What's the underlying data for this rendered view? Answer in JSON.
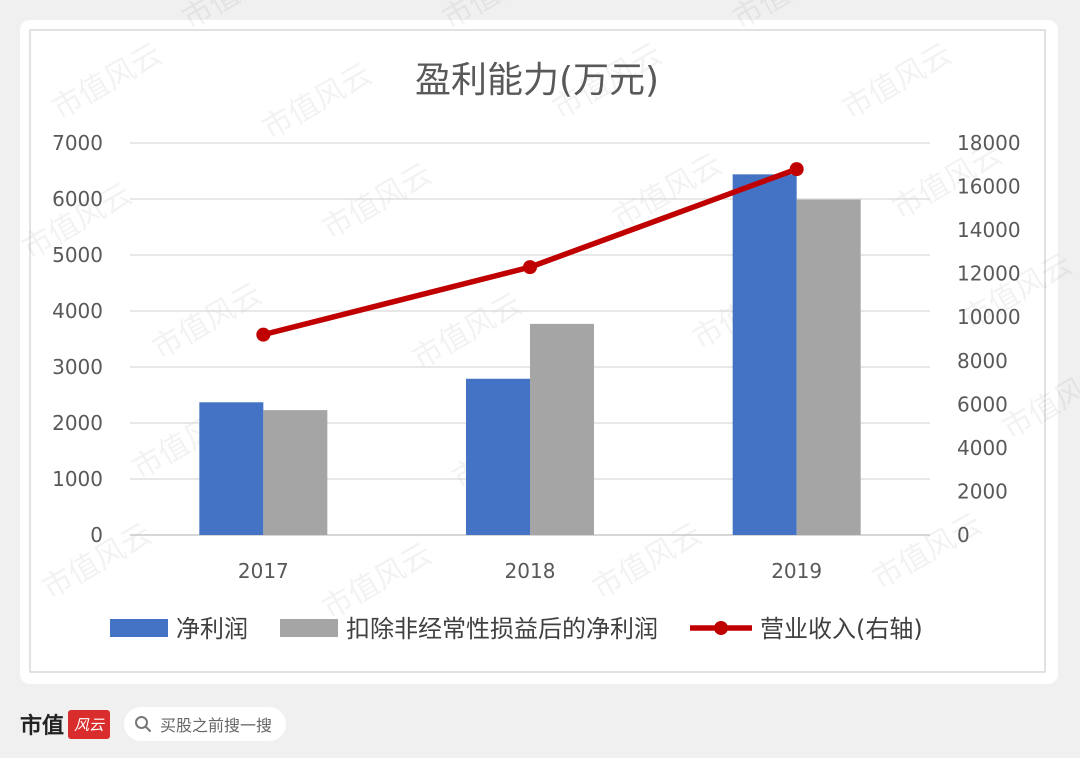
{
  "chart_data": {
    "type": "bar",
    "title": "盈利能力(万元)",
    "categories": [
      "2017",
      "2018",
      "2019"
    ],
    "series": [
      {
        "name": "净利润",
        "kind": "bar",
        "axis": "left",
        "color": "#4472c4",
        "values": [
          2370,
          2790,
          6440
        ]
      },
      {
        "name": "扣除非经常性损益后的净利润",
        "kind": "bar",
        "axis": "left",
        "color": "#a5a5a5",
        "values": [
          2230,
          3770,
          5990
        ]
      },
      {
        "name": "营业收入(右轴)",
        "kind": "line",
        "axis": "right",
        "color": "#c00000",
        "values": [
          9200,
          12300,
          16800
        ]
      }
    ],
    "y_left": {
      "min": 0,
      "max": 7000,
      "ticks": [
        "0",
        "1000",
        "2000",
        "3000",
        "4000",
        "5000",
        "6000",
        "7000"
      ]
    },
    "y_right": {
      "min": 0,
      "max": 18000,
      "ticks": [
        "0",
        "2000",
        "4000",
        "6000",
        "8000",
        "10000",
        "12000",
        "14000",
        "16000",
        "18000"
      ]
    },
    "grid": true,
    "legend_position": "bottom"
  },
  "watermark": "市值风云",
  "footer": {
    "brand": "市值",
    "logo_text": "风云",
    "search_placeholder": "买股之前搜一搜",
    "search_icon": "search-icon"
  }
}
